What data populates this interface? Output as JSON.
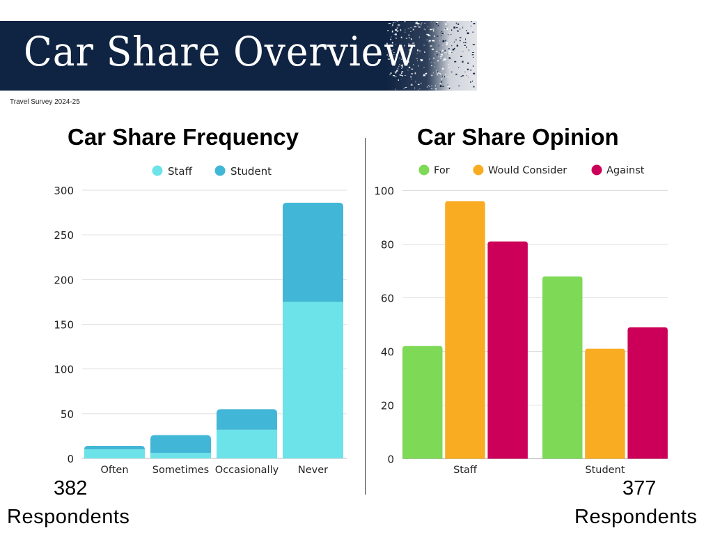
{
  "header": {
    "title": "Car Share Overview",
    "subtitle": "Travel Survey 2024-25",
    "background_color": "#0f2342"
  },
  "left_panel": {
    "respondents_count": "382",
    "respondents_label": "Respondents"
  },
  "right_panel": {
    "respondents_count": "377",
    "respondents_label": "Respondents"
  },
  "chart_data": [
    {
      "type": "bar",
      "stacked": true,
      "title": "Car Share Frequency",
      "xlabel": "",
      "ylabel": "",
      "categories": [
        "Often",
        "Sometimes",
        "Occasionally",
        "Never"
      ],
      "series": [
        {
          "name": "Staff",
          "color": "#6ce3e8",
          "values": [
            10,
            6,
            32,
            175
          ]
        },
        {
          "name": "Student",
          "color": "#42b6d6",
          "values": [
            4,
            20,
            23,
            111
          ]
        }
      ],
      "ylim": [
        0,
        300
      ],
      "yticks": [
        0,
        50,
        100,
        150,
        200,
        250,
        300
      ],
      "grid": true,
      "legend": "top-center"
    },
    {
      "type": "bar",
      "stacked": false,
      "title": "Car Share Opinion",
      "xlabel": "",
      "ylabel": "",
      "categories": [
        "Staff",
        "Student"
      ],
      "series": [
        {
          "name": "For",
          "color": "#7ed957",
          "values": [
            42,
            68
          ]
        },
        {
          "name": "Would Consider",
          "color": "#f9ac22",
          "values": [
            96,
            41
          ]
        },
        {
          "name": "Against",
          "color": "#cc0058",
          "values": [
            81,
            49
          ]
        }
      ],
      "ylim": [
        0,
        100
      ],
      "yticks": [
        0,
        20,
        40,
        60,
        80,
        100
      ],
      "grid": true,
      "legend": "top-center"
    }
  ]
}
